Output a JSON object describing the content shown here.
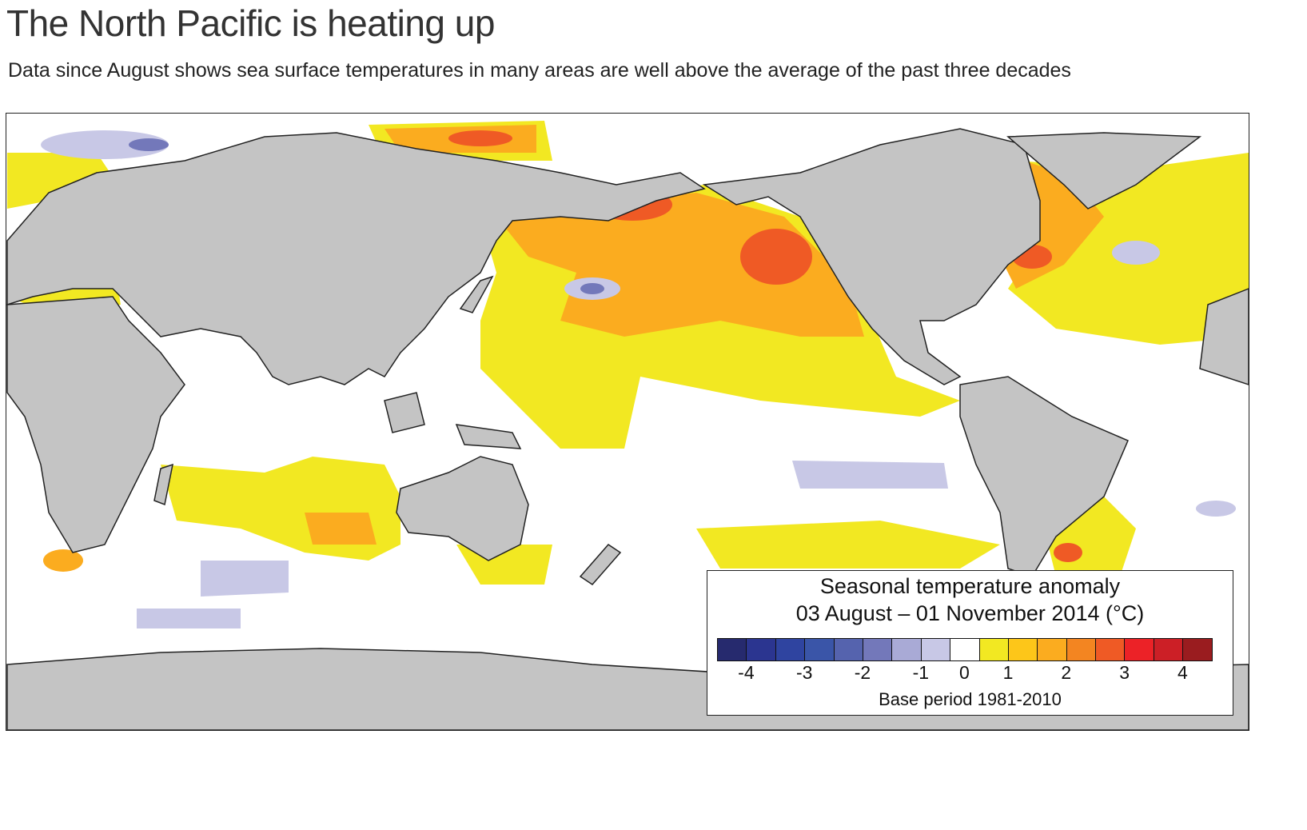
{
  "title": "The North Pacific is heating up",
  "subtitle": "Data since August shows sea surface temperatures in many areas are well above the average of the past three decades",
  "legend": {
    "title_line1": "Seasonal temperature anomaly",
    "title_line2": "03 August – 01 November 2014 (°C)",
    "base_period": "Base period 1981-2010",
    "ticks": [
      "-4",
      "-3",
      "-2",
      "-1",
      "0",
      "1",
      "2",
      "3",
      "4"
    ],
    "colors": [
      "#262a6e",
      "#2b3590",
      "#2f44a0",
      "#3a55a8",
      "#5563ae",
      "#7378ba",
      "#a9aad6",
      "#c8c8e6",
      "#ffffff",
      "#f2e822",
      "#fdc619",
      "#fbac1f",
      "#f38521",
      "#ef5a25",
      "#ec2227",
      "#cc1f26",
      "#9a1c1f"
    ]
  },
  "colors": {
    "land": "#c4c4c4",
    "coast": "#222222"
  }
}
